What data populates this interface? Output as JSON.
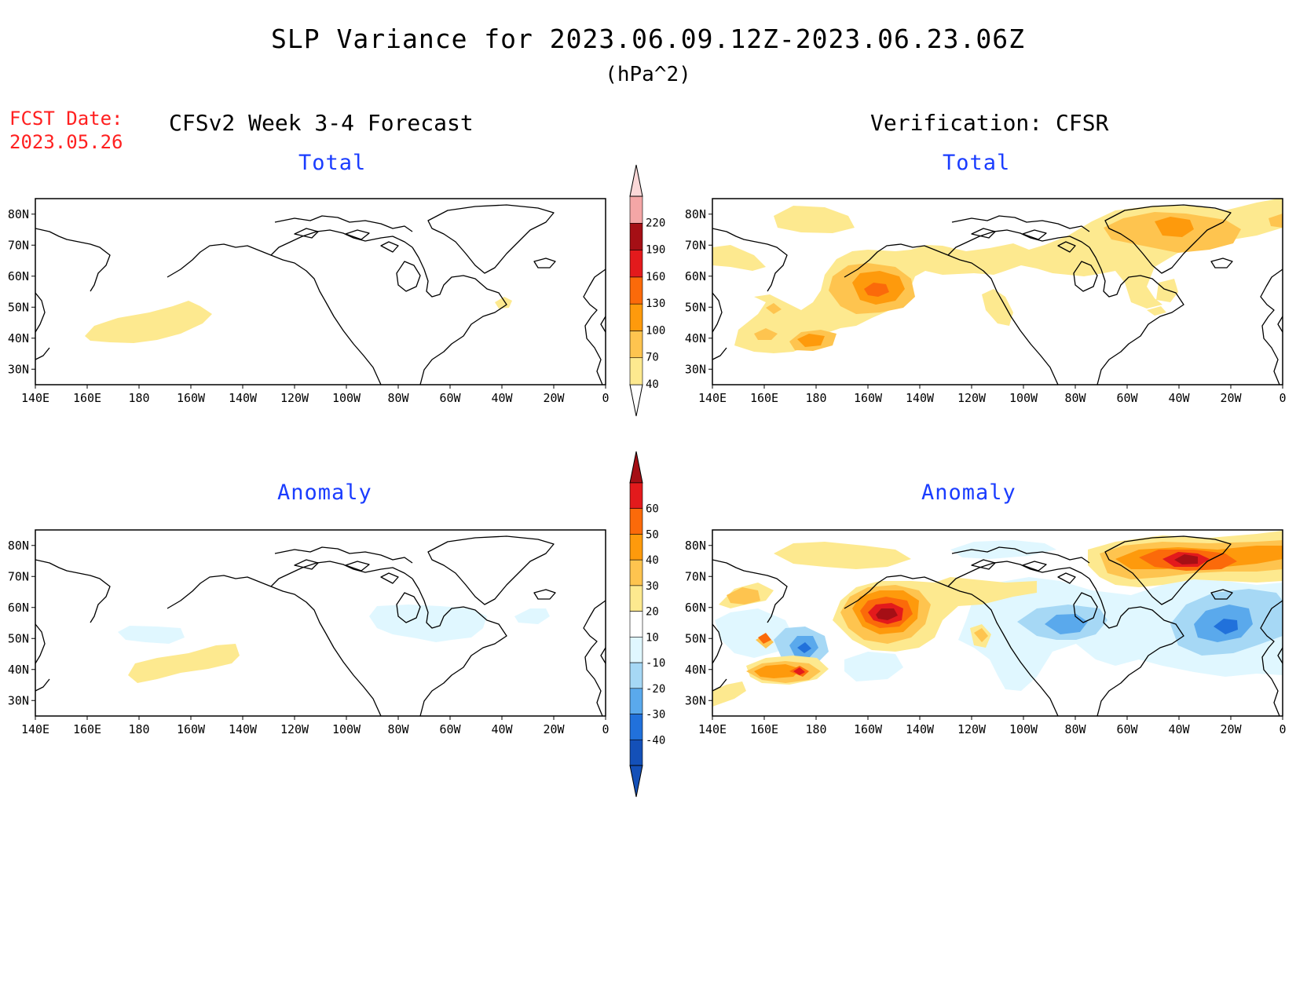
{
  "figure": {
    "title": "SLP Variance for 2023.06.09.12Z-2023.06.23.06Z",
    "units": "(hPa^2)",
    "fcst_label_line1": "FCST Date:",
    "fcst_label_line2": "2023.05.26",
    "left_column_title": "CFSv2 Week 3-4 Forecast",
    "right_column_title": "Verification: CFSR"
  },
  "panels": {
    "fcst_total": {
      "title": "Total"
    },
    "verif_total": {
      "title": "Total"
    },
    "fcst_anom": {
      "title": "Anomaly"
    },
    "verif_anom": {
      "title": "Anomaly"
    }
  },
  "axes": {
    "lon_labels": [
      "140E",
      "160E",
      "180",
      "160W",
      "140W",
      "120W",
      "100W",
      "80W",
      "60W",
      "40W",
      "20W",
      "0"
    ],
    "lat_labels": [
      "80N",
      "70N",
      "60N",
      "50N",
      "40N",
      "30N"
    ],
    "lon_range_deg_east": [
      140,
      360
    ],
    "lat_range": [
      25,
      85
    ]
  },
  "colorbars": {
    "total": {
      "levels": [
        "40",
        "70",
        "100",
        "130",
        "160",
        "190",
        "220"
      ],
      "colors": [
        "#fde98f",
        "#fec44f",
        "#fe9a0c",
        "#fb6a0a",
        "#e31a1c",
        "#a50f15",
        "#f4a6a6",
        "#fbd8d8"
      ]
    },
    "anomaly": {
      "levels": [
        "60",
        "50",
        "40",
        "30",
        "20",
        "10",
        "-10",
        "-20",
        "-30",
        "-40"
      ],
      "colors": [
        "#a50f15",
        "#e31a1c",
        "#fb6a0a",
        "#fe9a0c",
        "#fec44f",
        "#fde98f",
        "#ffffff",
        "#e0f7ff",
        "#a6d8f5",
        "#5aa9ec",
        "#2171db",
        "#1450b8"
      ]
    }
  },
  "chart_data": {
    "type": "map",
    "variable": "SLP Variance",
    "units": "(hPa^2)",
    "features": {
      "fcst_total": [
        {
          "lon": 190,
          "lat": 45,
          "level": "40-70"
        },
        {
          "lon": 320,
          "lat": 51,
          "level": "40-70"
        }
      ],
      "verif_total": [
        {
          "lon": 205,
          "lat": 55,
          "level": "130-160"
        },
        {
          "lon": 320,
          "lat": 75,
          "level": "100-130"
        },
        {
          "lon": 178,
          "lat": 41,
          "level": "70-100"
        },
        {
          "lon": 162,
          "lat": 42,
          "level": "70-100"
        },
        {
          "lon": 160,
          "lat": 50,
          "level": "70-100"
        },
        {
          "lon": 180,
          "lat": 80,
          "level": "40-70"
        },
        {
          "lon": 250,
          "lat": 50,
          "level": "40-70"
        }
      ],
      "fcst_anom": [
        {
          "lon": 185,
          "lat": 42,
          "level": "10-20"
        },
        {
          "lon": 280,
          "lat": 57,
          "level": "-20--10"
        },
        {
          "lon": 190,
          "lat": 53,
          "level": "-20--10"
        }
      ],
      "verif_anom": [
        {
          "lon": 205,
          "lat": 56,
          "level": "50-60"
        },
        {
          "lon": 320,
          "lat": 75,
          "level": "50-60"
        },
        {
          "lon": 180,
          "lat": 40,
          "level": "40-50"
        },
        {
          "lon": 161,
          "lat": 50,
          "level": "40-50"
        },
        {
          "lon": 155,
          "lat": 65,
          "level": "20-30"
        },
        {
          "lon": 176,
          "lat": 49,
          "level": "-40--30"
        },
        {
          "lon": 277,
          "lat": 55,
          "level": "-30--20"
        },
        {
          "lon": 335,
          "lat": 53,
          "level": "-40--30"
        }
      ]
    }
  }
}
